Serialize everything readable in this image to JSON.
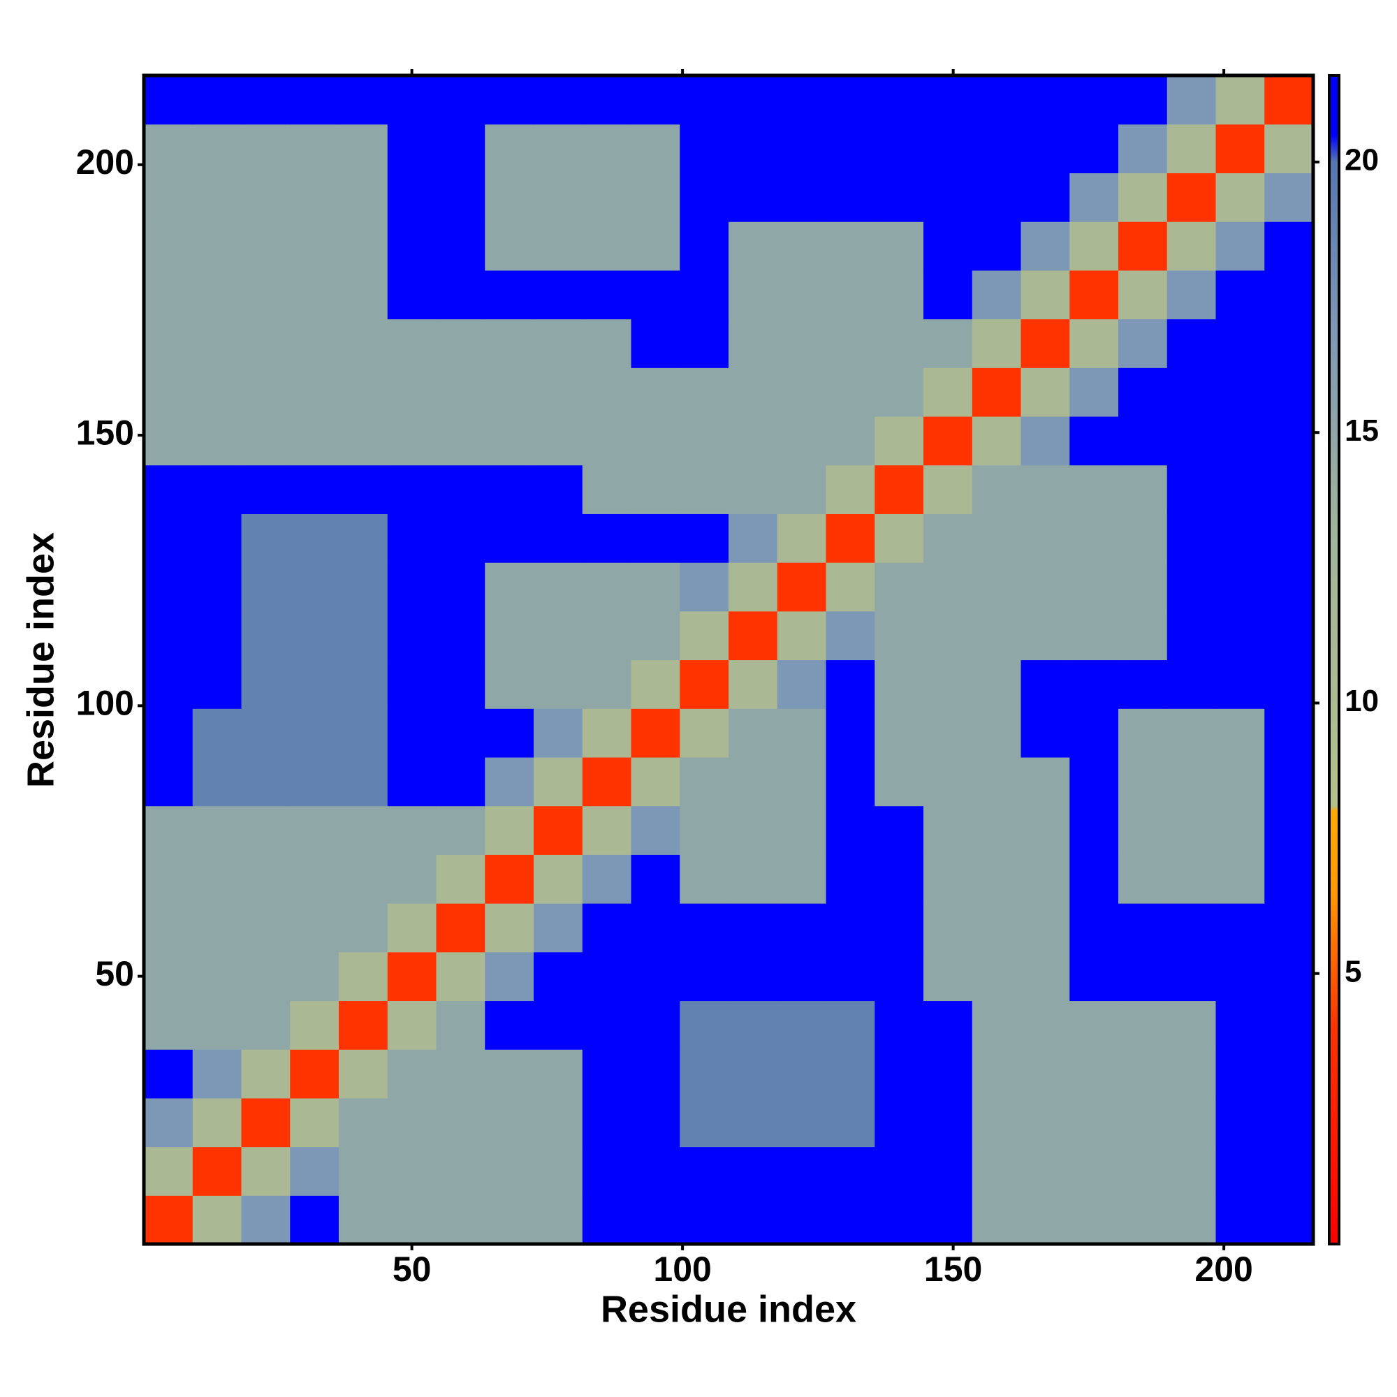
{
  "chart_data": {
    "type": "heatmap",
    "xlabel": "Residue index",
    "ylabel": "Residue index",
    "xlim": [
      0.5,
      216.5
    ],
    "ylim": [
      0.5,
      216.5
    ],
    "xticks": [
      50,
      100,
      150,
      200
    ],
    "yticks": [
      50,
      100,
      150,
      200
    ],
    "bins": [
      0.5,
      9.5,
      18.5,
      27.5,
      36.5,
      45.5,
      54.5,
      63.5,
      72.5,
      81.5,
      90.5,
      99.5,
      108.5,
      117.5,
      126.5,
      135.5,
      144.5,
      153.5,
      162.5,
      171.5,
      180.5,
      189.5,
      198.5,
      207.5,
      216.5
    ],
    "values": [
      [
        4,
        11,
        17,
        21,
        15,
        15,
        15,
        15,
        15,
        21,
        21,
        21,
        21,
        21,
        21,
        21,
        21,
        15,
        15,
        15,
        15,
        15,
        21,
        21
      ],
      [
        11,
        4,
        11,
        17,
        15,
        15,
        15,
        15,
        15,
        21,
        21,
        21,
        21,
        21,
        21,
        21,
        21,
        15,
        15,
        15,
        15,
        15,
        21,
        21
      ],
      [
        17,
        11,
        4,
        11,
        15,
        15,
        15,
        15,
        15,
        21,
        21,
        19,
        19,
        19,
        19,
        21,
        21,
        15,
        15,
        15,
        15,
        15,
        21,
        21
      ],
      [
        21,
        17,
        11,
        4,
        11,
        15,
        15,
        15,
        15,
        21,
        21,
        19,
        19,
        19,
        19,
        21,
        21,
        15,
        15,
        15,
        15,
        15,
        21,
        21
      ],
      [
        15,
        15,
        15,
        11,
        4,
        11,
        15,
        21,
        21,
        21,
        21,
        19,
        19,
        19,
        19,
        21,
        21,
        15,
        15,
        15,
        15,
        15,
        21,
        21
      ],
      [
        15,
        15,
        15,
        15,
        11,
        4,
        11,
        17,
        21,
        21,
        21,
        21,
        21,
        21,
        21,
        21,
        15,
        15,
        15,
        21,
        21,
        21,
        21,
        21
      ],
      [
        15,
        15,
        15,
        15,
        15,
        11,
        4,
        11,
        17,
        21,
        21,
        21,
        21,
        21,
        21,
        21,
        15,
        15,
        15,
        21,
        21,
        21,
        21,
        21
      ],
      [
        15,
        15,
        15,
        15,
        15,
        15,
        11,
        4,
        11,
        17,
        21,
        15,
        15,
        15,
        21,
        21,
        15,
        15,
        15,
        21,
        15,
        15,
        15,
        21
      ],
      [
        15,
        15,
        15,
        15,
        15,
        15,
        15,
        11,
        4,
        11,
        17,
        15,
        15,
        15,
        21,
        21,
        15,
        15,
        15,
        21,
        15,
        15,
        15,
        21
      ],
      [
        21,
        19,
        19,
        19,
        19,
        21,
        21,
        17,
        11,
        4,
        11,
        15,
        15,
        15,
        21,
        15,
        15,
        15,
        15,
        21,
        15,
        15,
        15,
        21
      ],
      [
        21,
        19,
        19,
        19,
        19,
        21,
        21,
        21,
        17,
        11,
        4,
        11,
        15,
        15,
        21,
        15,
        15,
        15,
        21,
        21,
        15,
        15,
        15,
        21
      ],
      [
        21,
        21,
        19,
        19,
        19,
        21,
        21,
        15,
        15,
        15,
        11,
        4,
        11,
        17,
        21,
        15,
        15,
        15,
        21,
        21,
        21,
        21,
        21,
        21
      ],
      [
        21,
        21,
        19,
        19,
        19,
        21,
        21,
        15,
        15,
        15,
        15,
        11,
        4,
        11,
        17,
        15,
        15,
        15,
        15,
        15,
        15,
        21,
        21,
        21
      ],
      [
        21,
        21,
        19,
        19,
        19,
        21,
        21,
        15,
        15,
        15,
        15,
        17,
        11,
        4,
        11,
        15,
        15,
        15,
        15,
        15,
        15,
        21,
        21,
        21
      ],
      [
        21,
        21,
        19,
        19,
        19,
        21,
        21,
        21,
        21,
        21,
        21,
        21,
        17,
        11,
        4,
        11,
        15,
        15,
        15,
        15,
        15,
        21,
        21,
        21
      ],
      [
        21,
        21,
        21,
        21,
        21,
        21,
        21,
        21,
        21,
        15,
        15,
        15,
        15,
        15,
        11,
        4,
        11,
        15,
        15,
        15,
        15,
        21,
        21,
        21
      ],
      [
        15,
        15,
        15,
        15,
        15,
        15,
        15,
        15,
        15,
        15,
        15,
        15,
        15,
        15,
        15,
        11,
        4,
        11,
        17,
        21,
        21,
        21,
        21,
        21
      ],
      [
        15,
        15,
        15,
        15,
        15,
        15,
        15,
        15,
        15,
        15,
        15,
        15,
        15,
        15,
        15,
        15,
        11,
        4,
        11,
        17,
        21,
        21,
        21,
        21
      ],
      [
        15,
        15,
        15,
        15,
        15,
        15,
        15,
        15,
        15,
        15,
        21,
        21,
        15,
        15,
        15,
        15,
        15,
        11,
        4,
        11,
        17,
        21,
        21,
        21
      ],
      [
        15,
        15,
        15,
        15,
        15,
        21,
        21,
        21,
        21,
        21,
        21,
        21,
        15,
        15,
        15,
        15,
        21,
        17,
        11,
        4,
        11,
        17,
        21,
        21
      ],
      [
        15,
        15,
        15,
        15,
        15,
        21,
        21,
        15,
        15,
        15,
        15,
        21,
        15,
        15,
        15,
        15,
        21,
        21,
        17,
        11,
        4,
        11,
        17,
        21
      ],
      [
        15,
        15,
        15,
        15,
        15,
        21,
        21,
        15,
        15,
        15,
        15,
        21,
        21,
        21,
        21,
        21,
        21,
        21,
        21,
        17,
        11,
        4,
        11,
        17
      ],
      [
        15,
        15,
        15,
        15,
        15,
        21,
        21,
        15,
        15,
        15,
        15,
        21,
        21,
        21,
        21,
        21,
        21,
        21,
        21,
        21,
        17,
        11,
        4,
        11
      ],
      [
        21,
        21,
        21,
        21,
        21,
        21,
        21,
        21,
        21,
        21,
        21,
        21,
        21,
        21,
        21,
        21,
        21,
        21,
        21,
        21,
        21,
        17,
        11,
        4
      ]
    ],
    "colorbar": {
      "lim": [
        0,
        21.6
      ],
      "ticks": [
        5,
        10,
        15,
        20
      ]
    },
    "colorscale": [
      {
        "value": 0,
        "color": "#ff0000"
      },
      {
        "value": 4,
        "color": "#ff3300"
      },
      {
        "value": 6.5,
        "color": "#ff9900"
      },
      {
        "value": 8,
        "color": "#ffaa00"
      },
      {
        "value": 8.1,
        "color": "#b4c08a"
      },
      {
        "value": 13,
        "color": "#a3b59a"
      },
      {
        "value": 17,
        "color": "#7c98b6"
      },
      {
        "value": 20,
        "color": "#5577b0"
      },
      {
        "value": 20.5,
        "color": "#0000ff"
      },
      {
        "value": 21.6,
        "color": "#0000ff"
      }
    ]
  }
}
